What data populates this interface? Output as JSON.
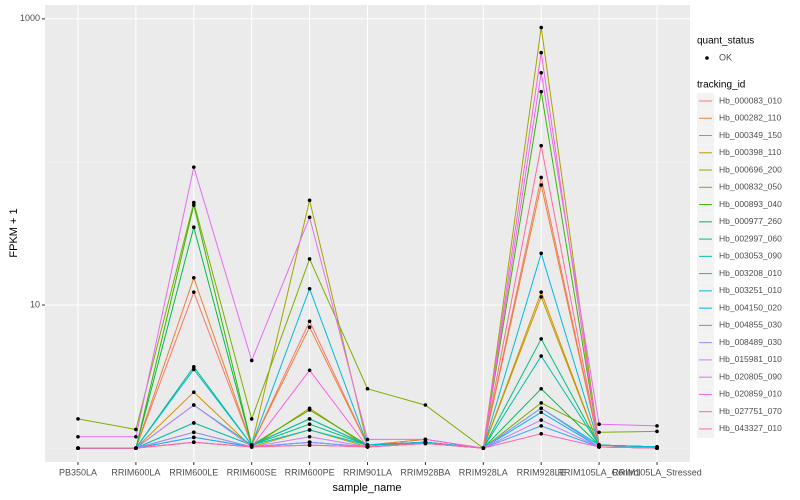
{
  "chart_data": {
    "type": "line",
    "x_label": "sample_name",
    "y_label": "FPKM + 1",
    "log_y": true,
    "grid": true,
    "categories": [
      "PB350LA",
      "RRIM600LA",
      "RRIM600LE",
      "RRIM600SE",
      "RRIM600PE",
      "RRIM901LA",
      "RRIM928BA",
      "RRIM928LA",
      "RRIM928LE",
      "RRIM105LA_Control",
      "RRIM105LA_Stressed"
    ],
    "ylim": [
      0.8,
      1250
    ],
    "yticks": [
      10,
      1000
    ],
    "yminor_ticks": [
      1,
      100
    ],
    "point_legend": {
      "title": "quant_status",
      "labels": [
        "OK"
      ],
      "color": "#000000"
    },
    "legend_title": "tracking_id",
    "legend_position": "right",
    "series": [
      {
        "name": "Hb_000083_010",
        "color": "#F8766D",
        "values": [
          1,
          1,
          12.3,
          1.05,
          7.7,
          1.05,
          1.15,
          1,
          78,
          1.05,
          1.02
        ]
      },
      {
        "name": "Hb_000282_110",
        "color": "#EA8331",
        "values": [
          1,
          1,
          15.5,
          1.05,
          7.0,
          1.05,
          1.15,
          1,
          69,
          1.05,
          1.02
        ]
      },
      {
        "name": "Hb_000349_150",
        "color": "#D89000",
        "values": [
          1,
          1,
          2.46,
          1.02,
          1.9,
          1.02,
          1.1,
          1,
          12.3,
          1.02,
          1
        ]
      },
      {
        "name": "Hb_000398_110",
        "color": "#C09B00",
        "values": [
          1,
          1,
          1.29,
          1.02,
          1.34,
          1.02,
          1.1,
          1,
          11.4,
          1.02,
          1
        ]
      },
      {
        "name": "Hb_000696_200",
        "color": "#A3A500",
        "values": [
          1,
          1,
          1.5,
          1.05,
          54,
          1.05,
          1.1,
          1,
          870,
          1.05,
          1.02
        ]
      },
      {
        "name": "Hb_000832_050",
        "color": "#7CAE00",
        "values": [
          1.6,
          1.35,
          52,
          1.6,
          21,
          2.6,
          2.0,
          1,
          2.07,
          1.29,
          1.31
        ]
      },
      {
        "name": "Hb_000893_040",
        "color": "#39B600",
        "values": [
          1,
          1,
          50,
          1.05,
          1.85,
          1.05,
          1.1,
          1,
          310,
          1.05,
          1.02
        ]
      },
      {
        "name": "Hb_000977_260",
        "color": "#00BB4E",
        "values": [
          1,
          1,
          35,
          1.05,
          1.6,
          1.05,
          1.1,
          1,
          2.6,
          1.05,
          1.02
        ]
      },
      {
        "name": "Hb_002997_060",
        "color": "#00BF7D",
        "values": [
          1,
          1,
          3.7,
          1.05,
          1.47,
          1.05,
          1.1,
          1,
          5.8,
          1.05,
          1.02
        ]
      },
      {
        "name": "Hb_003053_090",
        "color": "#00C1A3",
        "values": [
          1,
          1,
          2.0,
          1.05,
          1.6,
          1.05,
          1.1,
          1,
          4.4,
          1.05,
          1.02
        ]
      },
      {
        "name": "Hb_003208_010",
        "color": "#00BFC4",
        "values": [
          1,
          1,
          1.5,
          1.05,
          1.34,
          1.05,
          1.1,
          1,
          1.9,
          1.05,
          1.02
        ]
      },
      {
        "name": "Hb_003251_010",
        "color": "#00BAE0",
        "values": [
          1,
          1,
          3.55,
          1.05,
          13,
          1.05,
          1.1,
          1,
          23,
          1.05,
          1.02
        ]
      },
      {
        "name": "Hb_004150_020",
        "color": "#00B0F6",
        "values": [
          1,
          1,
          1.19,
          1.02,
          1.1,
          1.02,
          1.08,
          1,
          1.78,
          1.02,
          1
        ]
      },
      {
        "name": "Hb_004855_030",
        "color": "#35A2FF",
        "values": [
          1,
          1,
          1.19,
          1.02,
          1.1,
          1.02,
          1.08,
          1,
          1.43,
          1.02,
          1
        ]
      },
      {
        "name": "Hb_008489_030",
        "color": "#9590FF",
        "values": [
          1,
          1,
          1.29,
          1.02,
          1.1,
          1.02,
          1.08,
          1,
          1.9,
          1.02,
          1
        ]
      },
      {
        "name": "Hb_015981_010",
        "color": "#C77CFF",
        "values": [
          1,
          1,
          2.0,
          1.02,
          1.2,
          1.02,
          1.08,
          1,
          1.57,
          1.02,
          1
        ]
      },
      {
        "name": "Hb_020805_090",
        "color": "#E76BF3",
        "values": [
          1.2,
          1.2,
          92,
          4.1,
          41,
          1.15,
          1.15,
          1,
          420,
          1.47,
          1.43
        ]
      },
      {
        "name": "Hb_020859_010",
        "color": "#FA62DB",
        "values": [
          1,
          1,
          1.1,
          1.02,
          3.5,
          1.02,
          1.08,
          1,
          580,
          1.02,
          1
        ]
      },
      {
        "name": "Hb_027751_070",
        "color": "#FF62BC",
        "values": [
          1,
          1,
          1.1,
          1.02,
          1.05,
          1.02,
          1.08,
          1,
          1.26,
          1.02,
          1
        ]
      },
      {
        "name": "Hb_043327_010",
        "color": "#FF6C91",
        "values": [
          1,
          1,
          1.1,
          1.02,
          1.05,
          1.02,
          1.08,
          1,
          130,
          1.02,
          1
        ]
      }
    ]
  }
}
